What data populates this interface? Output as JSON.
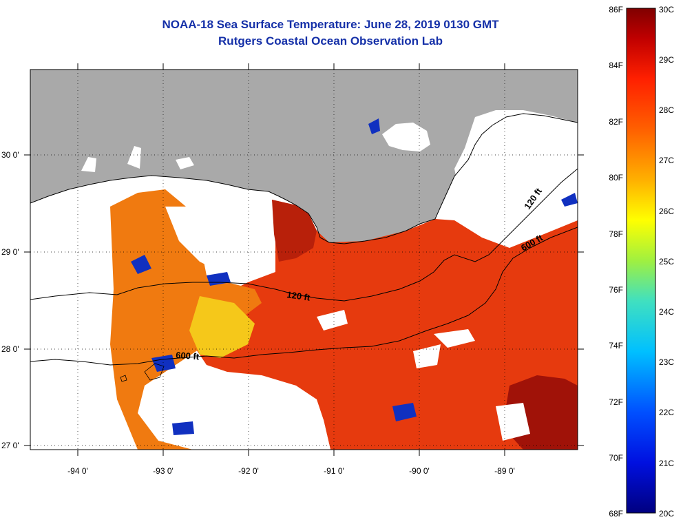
{
  "title_line1": "NOAA-18 Sea Surface Temperature:  June 28, 2019 0130 GMT",
  "title_line2": "Rutgers Coastal Ocean Observation Lab",
  "lon_ticks": [
    "-94 0'",
    "-93 0'",
    "-92 0'",
    "-91 0'",
    "-90 0'",
    "-89 0'"
  ],
  "lat_ticks": [
    "30 0'",
    "29 0'",
    "28 0'",
    "27 0'"
  ],
  "colorbar": {
    "fahrenheit": [
      "86F",
      "84F",
      "82F",
      "80F",
      "78F",
      "76F",
      "74F",
      "72F",
      "70F",
      "68F"
    ],
    "celsius": [
      "30C",
      "29C",
      "28C",
      "27C",
      "26C",
      "25C",
      "24C",
      "23C",
      "22C",
      "21C",
      "20C"
    ]
  },
  "contours": {
    "shelf_120": "120 ft",
    "shelf_600": "600 ft",
    "east_120": "120 ft",
    "east_600": "600 ft"
  },
  "colors": {
    "land": "#a9a9a9",
    "cloud": "#ffffff",
    "title": "#1530a8",
    "warm": "#e63a0e",
    "hot": "#b01808",
    "mid": "#f07a10",
    "cool": "#f5c81a",
    "cold": "#1030c0"
  }
}
